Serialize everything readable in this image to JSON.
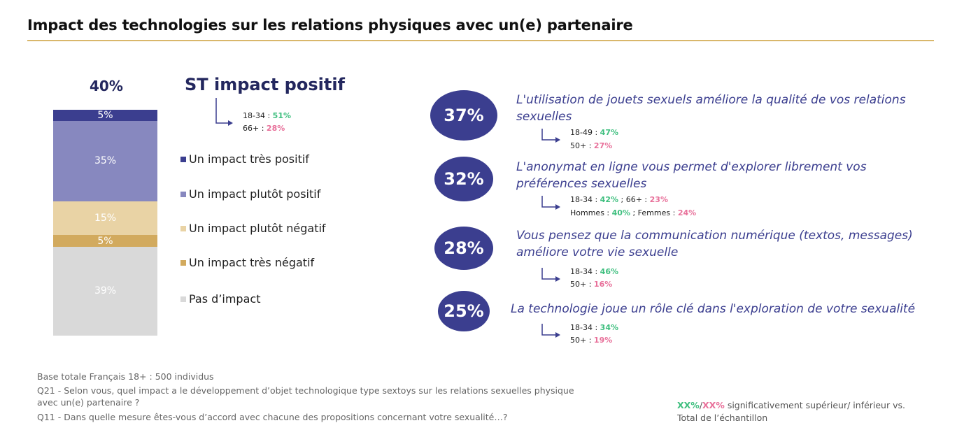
{
  "title": "Impact des technologies sur les relations physiques avec un(e) partenaire",
  "total_positive_pct": "40%",
  "st_label": "ST impact positif",
  "st_sub": [
    {
      "label": "18-34 : ",
      "value": "51%",
      "sig": "pos"
    },
    {
      "label": "66+ : ",
      "value": "28%",
      "sig": "neg"
    }
  ],
  "chart_data": {
    "type": "bar",
    "stacked": true,
    "categories": [
      "Un impact très positif",
      "Un impact plutôt positif",
      "Un impact plutôt négatif",
      "Un impact très négatif",
      "Pas d’impact"
    ],
    "values": [
      5,
      35,
      15,
      5,
      39
    ],
    "value_labels": [
      "5%",
      "35%",
      "15%",
      "5%",
      "39%"
    ],
    "colors": [
      "#3b3e8f",
      "#8788bf",
      "#e9d3a5",
      "#d2aa5e",
      "#d9d9d9"
    ],
    "ylim": [
      0,
      100
    ],
    "legend_position": "right"
  },
  "legend": [
    {
      "label": "Un impact très positif",
      "color": "#3b3e8f"
    },
    {
      "label": "Un impact plutôt positif",
      "color": "#8788bf"
    },
    {
      "label": "Un impact plutôt négatif",
      "color": "#e9d3a5"
    },
    {
      "label": "Un impact très négatif",
      "color": "#d2aa5e"
    },
    {
      "label": "Pas d’impact",
      "color": "#d9d9d9"
    }
  ],
  "statements": [
    {
      "pct": "37%",
      "text": "L'utilisation de jouets sexuels améliore la qualité de vos relations sexuelles",
      "subs": [
        [
          {
            "t": "18-49 : ",
            "c": ""
          },
          {
            "t": "47%",
            "c": "pos"
          }
        ],
        [
          {
            "t": "50+ : ",
            "c": ""
          },
          {
            "t": "27%",
            "c": "neg"
          }
        ]
      ]
    },
    {
      "pct": "32%",
      "text": "L'anonymat en ligne vous permet d'explorer librement vos préférences sexuelles",
      "subs": [
        [
          {
            "t": "18-34 : ",
            "c": ""
          },
          {
            "t": "42%",
            "c": "pos"
          },
          {
            "t": " ; 66+ : ",
            "c": ""
          },
          {
            "t": "23%",
            "c": "neg"
          }
        ],
        [
          {
            "t": "Hommes : ",
            "c": ""
          },
          {
            "t": "40%",
            "c": "pos"
          },
          {
            "t": " ; Femmes : ",
            "c": ""
          },
          {
            "t": "24%",
            "c": "neg"
          }
        ]
      ]
    },
    {
      "pct": "28%",
      "text": "Vous pensez que la communication numérique (textos, messages) améliore votre vie sexuelle",
      "subs": [
        [
          {
            "t": "18-34 : ",
            "c": ""
          },
          {
            "t": "46%",
            "c": "pos"
          }
        ],
        [
          {
            "t": "50+ : ",
            "c": ""
          },
          {
            "t": "16%",
            "c": "neg"
          }
        ]
      ]
    },
    {
      "pct": "25%",
      "text": "La technologie joue un rôle clé dans l'exploration de votre sexualité",
      "subs": [
        [
          {
            "t": "18-34 : ",
            "c": ""
          },
          {
            "t": "34%",
            "c": "pos"
          }
        ],
        [
          {
            "t": "50+ : ",
            "c": ""
          },
          {
            "t": "19%",
            "c": "neg"
          }
        ]
      ]
    }
  ],
  "footnotes": {
    "base": "Base totale Français 18+ : 500 individus",
    "q21_line1": "Q21 - Selon vous, quel impact a le développement d’objet technologique type sextoys sur les relations sexuelles physique",
    "q21_line2": "avec un(e) partenaire ?",
    "q11": "Q11 - Dans quelle mesure êtes-vous d’accord avec chacune des propositions concernant votre sexualité…?"
  },
  "sig_legend": {
    "pos": "XX%",
    "slash": "/",
    "neg": "XX%",
    "text1": " significativement supérieur/ inférieur vs.",
    "text2": "Total de l’échantillon"
  }
}
